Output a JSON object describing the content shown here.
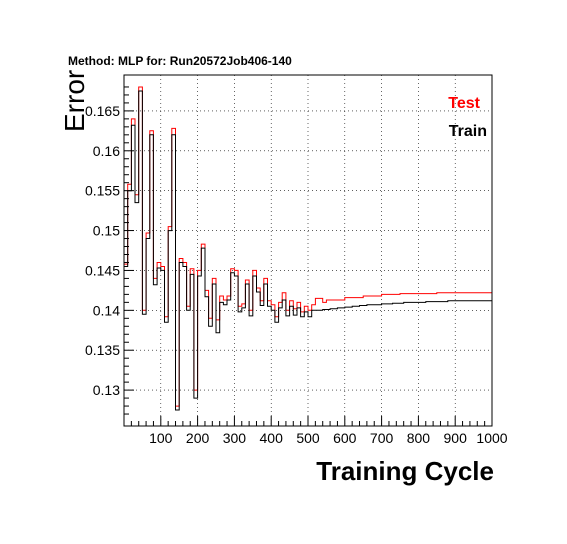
{
  "chart_data": {
    "type": "line",
    "title": "Method: MLP for: Run20572Job406-140",
    "xlabel": "Training Cycle",
    "ylabel": "Error",
    "xlim": [
      0,
      1000
    ],
    "ylim": [
      0.1255,
      0.1695
    ],
    "grid": true,
    "legend_position": "top-right",
    "x_ticks": [
      100,
      200,
      300,
      400,
      500,
      600,
      700,
      800,
      900,
      1000
    ],
    "y_ticks": [
      0.13,
      0.135,
      0.14,
      0.145,
      0.15,
      0.155,
      0.16,
      0.165
    ],
    "y_tick_labels": [
      "0.13",
      "0.135",
      "0.14",
      "0.145",
      "0.15",
      "0.155",
      "0.16",
      "0.165"
    ],
    "x": [
      0,
      10,
      20,
      30,
      40,
      50,
      60,
      70,
      80,
      90,
      100,
      110,
      120,
      130,
      140,
      150,
      160,
      170,
      180,
      190,
      200,
      210,
      220,
      230,
      240,
      250,
      260,
      270,
      280,
      290,
      300,
      310,
      320,
      330,
      340,
      350,
      360,
      370,
      380,
      390,
      400,
      410,
      420,
      430,
      440,
      450,
      460,
      470,
      480,
      490,
      500,
      510,
      520,
      530,
      540,
      550,
      560,
      570,
      580,
      590,
      600,
      610,
      620,
      630,
      640,
      650,
      660,
      670,
      680,
      690,
      700,
      710,
      720,
      730,
      740,
      750,
      760,
      770,
      780,
      790,
      800,
      810,
      820,
      830,
      840,
      850,
      860,
      870,
      880,
      890,
      900,
      910,
      920,
      930,
      940,
      950,
      960,
      970,
      980,
      990
    ],
    "series": [
      {
        "name": "Test",
        "color": "#ff0000",
        "values": [
          0.1458,
          0.1558,
          0.164,
          0.1545,
          0.168,
          0.14,
          0.1497,
          0.1625,
          0.144,
          0.146,
          0.1455,
          0.1392,
          0.1505,
          0.1628,
          0.128,
          0.1465,
          0.146,
          0.1405,
          0.1452,
          0.13,
          0.145,
          0.1483,
          0.1425,
          0.139,
          0.144,
          0.1388,
          0.1418,
          0.1413,
          0.1418,
          0.1452,
          0.145,
          0.1405,
          0.1408,
          0.1438,
          0.14,
          0.145,
          0.1428,
          0.1412,
          0.144,
          0.1412,
          0.1407,
          0.1392,
          0.141,
          0.1422,
          0.14,
          0.1412,
          0.1402,
          0.141,
          0.1398,
          0.1405,
          0.14,
          0.1407,
          0.1415,
          0.1415,
          0.141,
          0.1413,
          0.1413,
          0.1413,
          0.1413,
          0.1413,
          0.1416,
          0.1416,
          0.1416,
          0.1416,
          0.1416,
          0.1418,
          0.1418,
          0.1418,
          0.1418,
          0.1418,
          0.142,
          0.142,
          0.142,
          0.142,
          0.142,
          0.1421,
          0.1421,
          0.1421,
          0.1421,
          0.1421,
          0.1421,
          0.1421,
          0.1421,
          0.1421,
          0.1421,
          0.1422,
          0.1422,
          0.1422,
          0.1422,
          0.1422,
          0.1422,
          0.1422,
          0.1422,
          0.1422,
          0.1422,
          0.1422,
          0.1422,
          0.1422,
          0.1422,
          0.1422
        ]
      },
      {
        "name": "Train",
        "color": "#000000",
        "values": [
          0.1455,
          0.155,
          0.1632,
          0.1535,
          0.1675,
          0.1395,
          0.149,
          0.162,
          0.1432,
          0.1453,
          0.145,
          0.1385,
          0.15,
          0.162,
          0.1275,
          0.146,
          0.1455,
          0.14,
          0.1445,
          0.129,
          0.1443,
          0.1478,
          0.1417,
          0.138,
          0.1433,
          0.1372,
          0.141,
          0.1407,
          0.1413,
          0.1447,
          0.1443,
          0.1398,
          0.1403,
          0.1433,
          0.1393,
          0.1443,
          0.1423,
          0.1406,
          0.1433,
          0.1405,
          0.14,
          0.1385,
          0.1403,
          0.1413,
          0.1393,
          0.1405,
          0.1394,
          0.1403,
          0.1392,
          0.1398,
          0.1392,
          0.14,
          0.14,
          0.14,
          0.1401,
          0.1401,
          0.1402,
          0.1402,
          0.1403,
          0.1403,
          0.1404,
          0.1404,
          0.1405,
          0.1405,
          0.1406,
          0.1406,
          0.1407,
          0.1407,
          0.1407,
          0.1407,
          0.1408,
          0.1408,
          0.1408,
          0.1409,
          0.1409,
          0.1409,
          0.141,
          0.141,
          0.141,
          0.141,
          0.141,
          0.141,
          0.1411,
          0.1411,
          0.1411,
          0.1411,
          0.1411,
          0.1411,
          0.1412,
          0.1412,
          0.1412,
          0.1412,
          0.1412,
          0.1412,
          0.1412,
          0.1412,
          0.1412,
          0.1412,
          0.1412,
          0.1412
        ]
      }
    ]
  }
}
